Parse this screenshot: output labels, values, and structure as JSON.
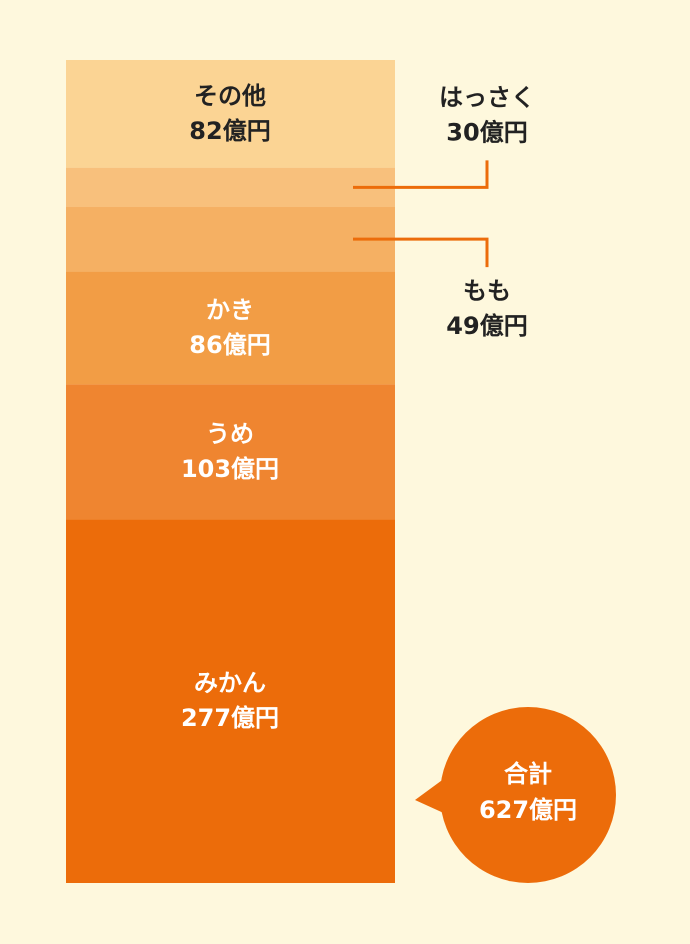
{
  "chart_data": {
    "type": "stacked-column",
    "series": [
      {
        "name": "みかん",
        "color": "#ec6c0a",
        "values": [
          277
        ],
        "value_labels": [
          "277億円"
        ]
      },
      {
        "name": "うめ",
        "color": "#ef8530",
        "values": [
          103
        ],
        "value_labels": [
          "103億円"
        ]
      },
      {
        "name": "かき",
        "color": "#f29d45",
        "values": [
          86
        ],
        "value_labels": [
          "86億円"
        ]
      },
      {
        "name": "もも",
        "color": "#f5b063",
        "values": [
          49
        ],
        "value_labels": [
          "49億円"
        ]
      },
      {
        "name": "はっさく",
        "color": "#f8c07c",
        "values": [
          30
        ],
        "value_labels": [
          "30億円"
        ]
      },
      {
        "name": "その他",
        "color": "#fbd494",
        "values": [
          82
        ],
        "value_labels": [
          "82億円"
        ]
      }
    ],
    "total": {
      "label": "合計",
      "value": 627,
      "value_label": "627億円",
      "color": "#ec6c0a"
    }
  }
}
